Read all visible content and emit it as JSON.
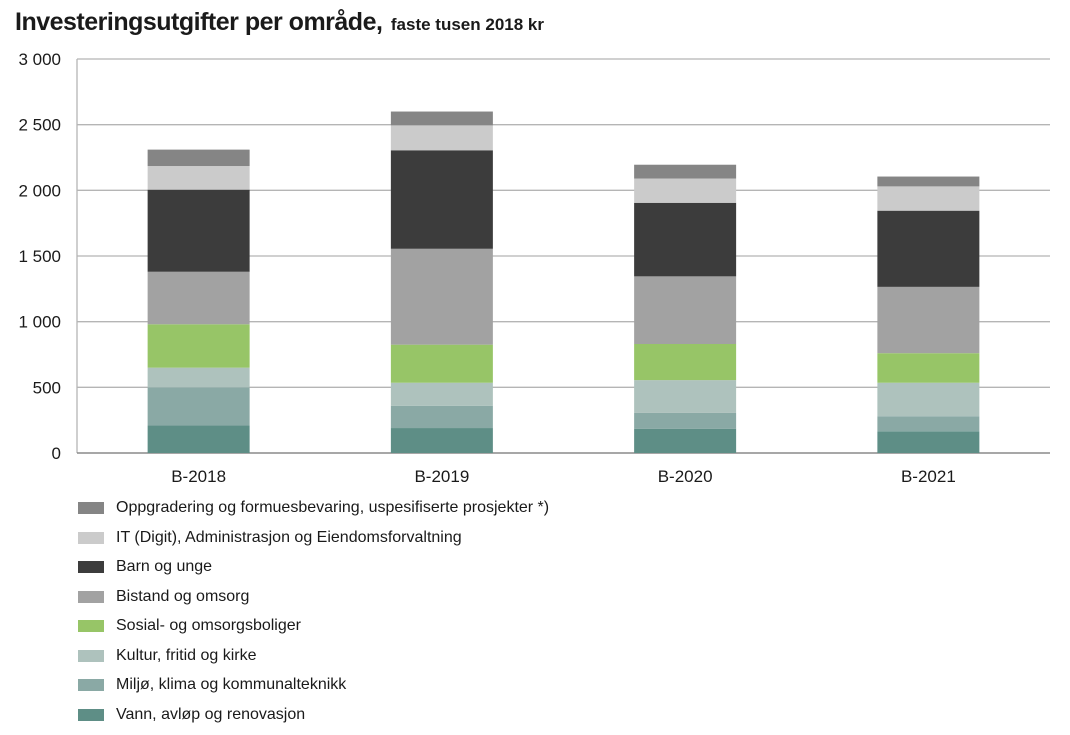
{
  "title": {
    "main": "Investeringsutgifter per område,",
    "sub": "faste tusen 2018 kr"
  },
  "chart_data": {
    "type": "bar",
    "stacked": true,
    "title": "Investeringsutgifter per område, faste tusen 2018 kr",
    "categories": [
      "B-2018",
      "B-2019",
      "B-2020",
      "B-2021"
    ],
    "ylim": [
      0,
      3000
    ],
    "yticks": [
      0,
      500,
      1000,
      1500,
      2000,
      2500,
      3000
    ],
    "ytick_labels": [
      "0",
      "500",
      "1 000",
      "1 500",
      "2 000",
      "2 500",
      "3 000"
    ],
    "grid": true,
    "legend_position": "bottom-left",
    "series": [
      {
        "name": "Vann, avløp og renovasjon",
        "color": "#5e8e86",
        "values": [
          210,
          190,
          185,
          165
        ]
      },
      {
        "name": "Miljø, klima og kommunalteknikk",
        "color": "#8aa9a5",
        "values": [
          290,
          170,
          120,
          115
        ]
      },
      {
        "name": "Kultur, fritid og kirke",
        "color": "#aec2bd",
        "values": [
          150,
          175,
          250,
          255
        ]
      },
      {
        "name": "Sosial- og omsorgsboliger",
        "color": "#97c567",
        "values": [
          330,
          290,
          275,
          225
        ]
      },
      {
        "name": "Bistand og omsorg",
        "color": "#a2a2a2",
        "values": [
          400,
          730,
          515,
          505
        ]
      },
      {
        "name": "Barn og unge",
        "color": "#3c3c3c",
        "values": [
          625,
          750,
          560,
          580
        ]
      },
      {
        "name": "IT (Digit), Administrasjon og Eiendomsforvaltning",
        "color": "#cbcbcb",
        "values": [
          180,
          190,
          185,
          185
        ]
      },
      {
        "name": "Oppgradering og formuesbevaring, uspesifiserte prosjekter *)",
        "color": "#858585",
        "values": [
          125,
          105,
          105,
          75
        ]
      }
    ]
  }
}
